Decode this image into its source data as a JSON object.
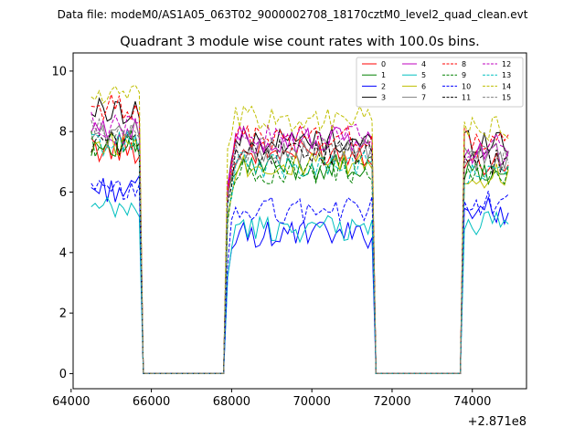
{
  "figure": {
    "suptitle": "Data file: modeM0/AS1A05_063T02_9000002708_18170cztM0_level2_quad_clean.evt"
  },
  "chart_data": {
    "type": "line",
    "title": "Quadrant 3 module wise count rates with 100.0s bins.",
    "xlabel": "",
    "ylabel": "",
    "x_offset_label": "+2.871e8",
    "xlim": [
      64050,
      75350
    ],
    "ylim": [
      -0.5,
      10.6
    ],
    "x_ticks": [
      64000,
      66000,
      68000,
      70000,
      72000,
      74000
    ],
    "x_tick_labels": [
      "64000",
      "66000",
      "68000",
      "70000",
      "72000",
      "74000"
    ],
    "y_ticks": [
      0,
      2,
      4,
      6,
      8,
      10
    ],
    "y_tick_labels": [
      "0",
      "2",
      "4",
      "6",
      "8",
      "10"
    ],
    "grid": false,
    "legend_placement": "top-right",
    "legend_columns": 4,
    "segments": [
      {
        "start": 64500,
        "end": 65700,
        "gap_end": 65800
      },
      {
        "start": 67900,
        "end": 71500,
        "gap_end": 71600
      },
      {
        "start": 73800,
        "end": 74900,
        "gap_end": null
      }
    ],
    "series": [
      {
        "name": "0",
        "color": "#ff0000",
        "dash": "solid",
        "levels": [
          7.4,
          7.3,
          7.0
        ]
      },
      {
        "name": "1",
        "color": "#008000",
        "dash": "solid",
        "levels": [
          7.6,
          6.8,
          6.6
        ]
      },
      {
        "name": "2",
        "color": "#0000ff",
        "dash": "solid",
        "levels": [
          6.1,
          4.6,
          5.4
        ]
      },
      {
        "name": "3",
        "color": "#000000",
        "dash": "solid",
        "levels": [
          8.7,
          7.7,
          7.7
        ]
      },
      {
        "name": "4",
        "color": "#bf00bf",
        "dash": "solid",
        "levels": [
          8.0,
          7.7,
          7.3
        ]
      },
      {
        "name": "5",
        "color": "#00bfbf",
        "dash": "solid",
        "levels": [
          5.4,
          4.8,
          5.0
        ]
      },
      {
        "name": "6",
        "color": "#bfbf00",
        "dash": "solid",
        "levels": [
          7.6,
          6.9,
          6.5
        ]
      },
      {
        "name": "7",
        "color": "#808080",
        "dash": "solid",
        "levels": [
          7.9,
          7.3,
          7.1
        ]
      },
      {
        "name": "8",
        "color": "#ff0000",
        "dash": "dashed",
        "levels": [
          8.8,
          7.8,
          7.7
        ]
      },
      {
        "name": "9",
        "color": "#008000",
        "dash": "dashed",
        "levels": [
          7.6,
          6.7,
          6.5
        ]
      },
      {
        "name": "10",
        "color": "#0000ff",
        "dash": "dashed",
        "levels": [
          6.0,
          5.4,
          5.7
        ]
      },
      {
        "name": "11",
        "color": "#000000",
        "dash": "dashed",
        "levels": [
          7.6,
          7.3,
          7.0
        ]
      },
      {
        "name": "12",
        "color": "#bf00bf",
        "dash": "dashed",
        "levels": [
          8.2,
          7.8,
          7.5
        ]
      },
      {
        "name": "13",
        "color": "#00bfbf",
        "dash": "dashed",
        "levels": [
          7.6,
          6.9,
          6.6
        ]
      },
      {
        "name": "14",
        "color": "#bfbf00",
        "dash": "dashed",
        "levels": [
          9.2,
          8.4,
          8.1
        ]
      },
      {
        "name": "15",
        "color": "#808080",
        "dash": "dashed",
        "levels": [
          8.0,
          7.4,
          7.2
        ]
      }
    ]
  }
}
